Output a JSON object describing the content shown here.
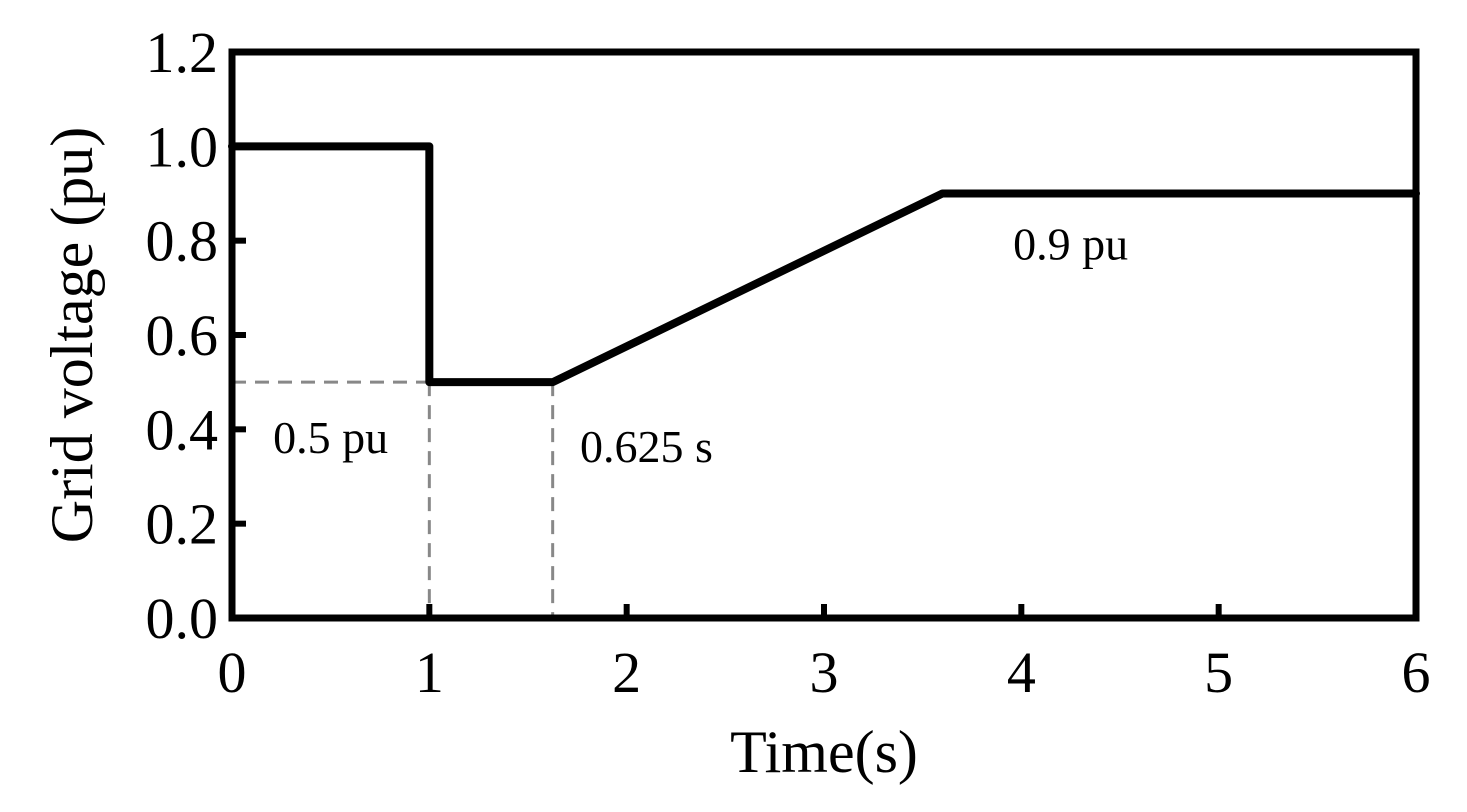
{
  "chart_data": {
    "type": "line",
    "title": "",
    "xlabel": "Time(s)",
    "ylabel": "Grid voltage (pu)",
    "xlim": [
      0,
      6
    ],
    "ylim": [
      0.0,
      1.2
    ],
    "xticks": [
      "0",
      "1",
      "2",
      "3",
      "4",
      "5",
      "6"
    ],
    "yticks": [
      "0.0",
      "0.2",
      "0.4",
      "0.6",
      "0.8",
      "1.0",
      "1.2"
    ],
    "grid": false,
    "series": [
      {
        "x": [
          0,
          1.0,
          1.0,
          1.625,
          3.6,
          6.0
        ],
        "y": [
          1.0,
          1.0,
          0.5,
          0.5,
          0.9,
          0.9
        ]
      }
    ],
    "annotations": [
      {
        "text": "0.5 pu",
        "x": 0.5,
        "y": 0.38
      },
      {
        "text": "0.625 s",
        "x": 2.1,
        "y": 0.36
      },
      {
        "text": "0.9 pu",
        "x": 4.25,
        "y": 0.79
      },
      {
        "text": "0.9 pu",
        "x": 4.25,
        "y": 0.79
      }
    ],
    "reference_lines": [
      {
        "style": "dashed",
        "color": "#888888",
        "points": [
          [
            0,
            0.5
          ],
          [
            1.625,
            0.5
          ]
        ]
      },
      {
        "style": "dashed",
        "color": "#888888",
        "points": [
          [
            1.0,
            0.5
          ],
          [
            1.0,
            0.0
          ]
        ]
      },
      {
        "style": "dashed",
        "color": "#888888",
        "points": [
          [
            1.625,
            0.5
          ],
          [
            1.625,
            0.0
          ]
        ]
      }
    ],
    "colors": {
      "line": "#000000",
      "axes": "#000000",
      "reference": "#888888"
    }
  }
}
